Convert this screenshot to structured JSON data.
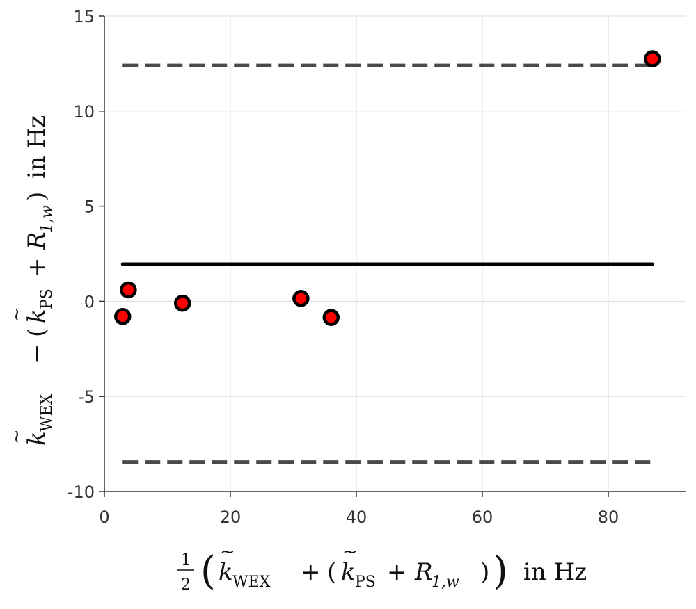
{
  "chart_data": {
    "type": "scatter",
    "xlabel": {
      "fraction_num": "1",
      "fraction_den": "2",
      "k": "k",
      "tilde": "~",
      "sub_wex": "WEX",
      "plus": "+",
      "open_paren": "(",
      "sub_ps": "PS",
      "r": "R",
      "sub_r": "1,w",
      "close_paren": ")",
      "unit": "in Hz"
    },
    "ylabel": {
      "k": "k",
      "tilde": "~",
      "sub_wex": "WEX",
      "minus": "−",
      "open_paren": "(",
      "sub_ps": "PS",
      "plus": "+",
      "r": "R",
      "sub_r": "1,w",
      "close_paren": ")",
      "unit": "in Hz"
    },
    "xlim": [
      0,
      92.5
    ],
    "ylim": [
      -10,
      15
    ],
    "x_ticks": [
      0,
      20,
      40,
      60,
      80
    ],
    "y_ticks": [
      -10,
      -5,
      0,
      5,
      10,
      15
    ],
    "y_tick_labels": [
      "-10",
      "-5",
      "0",
      "5",
      "10",
      "15"
    ],
    "grid": true,
    "points": [
      {
        "x": 2.9,
        "y": -0.8
      },
      {
        "x": 3.8,
        "y": 0.6
      },
      {
        "x": 12.4,
        "y": -0.1
      },
      {
        "x": 31.2,
        "y": 0.15
      },
      {
        "x": 36.0,
        "y": -0.85
      },
      {
        "x": 87.0,
        "y": 12.75
      }
    ],
    "mean_line": {
      "y": 1.95,
      "x_start": 2.9,
      "x_end": 87.0
    },
    "limit_lines": [
      {
        "y": 12.4,
        "x_start": 2.9,
        "x_end": 87.0
      },
      {
        "y": -8.45,
        "x_start": 2.9,
        "x_end": 87.0
      }
    ],
    "colors": {
      "point_fill": "#ff0000",
      "point_edge": "#000000",
      "mean_line": "#000000",
      "limit_line": "#4a4a4a",
      "grid": "#dddddd",
      "axis": "#333333"
    }
  }
}
